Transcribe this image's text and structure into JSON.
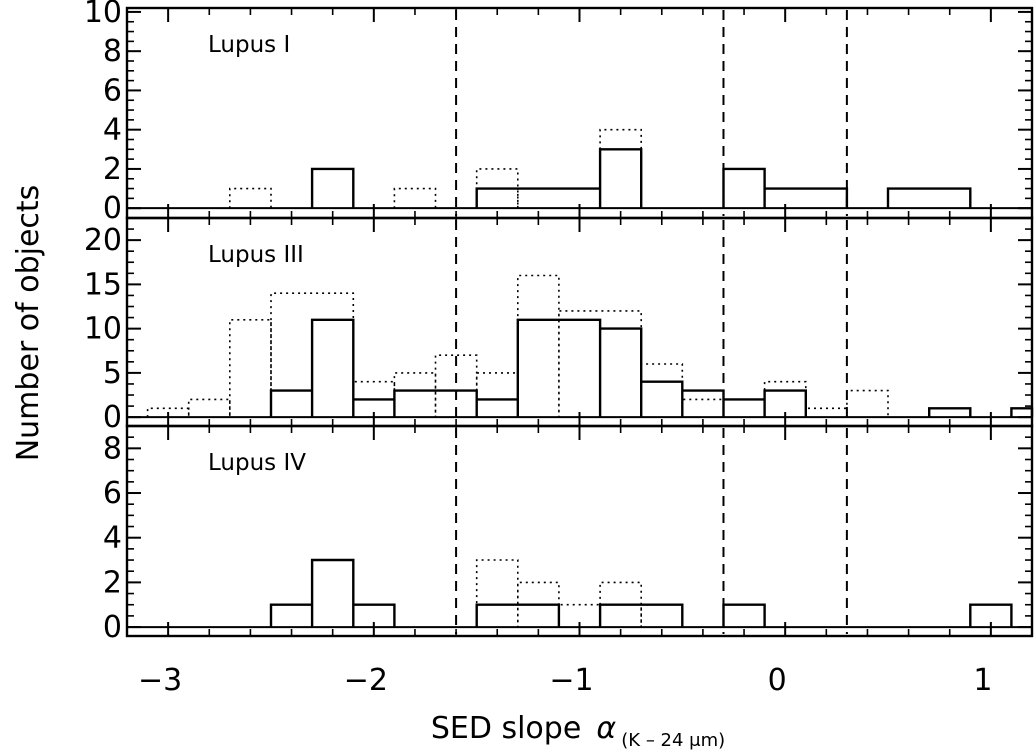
{
  "chart_data": {
    "type": "histogram",
    "x_axis": {
      "label": "SED slope",
      "symbol": "α",
      "subscript": "(K – 24 μm)",
      "range": [
        -3.2,
        1.2
      ],
      "ticks": [
        -3,
        -2,
        -1,
        0,
        1
      ],
      "tick_labels": [
        "−3",
        "−2",
        "−1",
        "0",
        "1"
      ],
      "bin_width": 0.2
    },
    "y_axis": {
      "label": "Number of objects"
    },
    "class_boundaries": [
      -1.6,
      -0.3,
      0.3
    ],
    "bins": {
      "lupus1": {
        "solid": [
          [
            -2.3,
            -2.1,
            2
          ],
          [
            -1.5,
            -0.9,
            1
          ],
          [
            -0.9,
            -0.7,
            3
          ],
          [
            -0.3,
            -0.1,
            2
          ],
          [
            -0.1,
            0.3,
            1
          ],
          [
            0.5,
            0.9,
            1
          ]
        ],
        "dotted": [
          [
            -2.7,
            -2.5,
            1
          ],
          [
            -2.3,
            -2.1,
            2
          ],
          [
            -1.9,
            -1.7,
            1
          ],
          [
            -1.5,
            -1.3,
            2
          ],
          [
            -1.3,
            -0.9,
            1
          ],
          [
            -0.9,
            -0.7,
            4
          ],
          [
            -0.3,
            -0.1,
            2
          ],
          [
            -0.1,
            0.3,
            1
          ],
          [
            0.5,
            0.9,
            1
          ]
        ]
      },
      "lupus3": {
        "solid": [
          [
            -2.5,
            -2.3,
            3
          ],
          [
            -2.3,
            -2.1,
            11
          ],
          [
            -2.1,
            -1.9,
            2
          ],
          [
            -1.9,
            -1.5,
            3
          ],
          [
            -1.5,
            -1.3,
            2
          ],
          [
            -1.3,
            -0.9,
            11
          ],
          [
            -0.9,
            -0.7,
            10
          ],
          [
            -0.7,
            -0.5,
            4
          ],
          [
            -0.5,
            -0.3,
            3
          ],
          [
            -0.3,
            -0.1,
            2
          ],
          [
            -0.1,
            0.1,
            3
          ],
          [
            0.7,
            0.9,
            1
          ],
          [
            1.1,
            1.3,
            1
          ]
        ],
        "dotted": [
          [
            -3.1,
            -2.9,
            1
          ],
          [
            -2.9,
            -2.7,
            2
          ],
          [
            -2.7,
            -2.5,
            11
          ],
          [
            -2.5,
            -2.1,
            14
          ],
          [
            -2.1,
            -1.9,
            4
          ],
          [
            -1.9,
            -1.7,
            5
          ],
          [
            -1.7,
            -1.5,
            7
          ],
          [
            -1.5,
            -1.3,
            5
          ],
          [
            -1.3,
            -1.1,
            16
          ],
          [
            -1.1,
            -0.7,
            12
          ],
          [
            -0.7,
            -0.5,
            6
          ],
          [
            -0.5,
            -0.1,
            2
          ],
          [
            -0.1,
            0.1,
            4
          ],
          [
            0.1,
            0.3,
            1
          ],
          [
            0.3,
            0.5,
            3
          ],
          [
            0.7,
            0.9,
            1
          ],
          [
            1.1,
            1.3,
            1
          ]
        ]
      },
      "lupus4": {
        "solid": [
          [
            -2.5,
            -2.3,
            1
          ],
          [
            -2.3,
            -2.1,
            3
          ],
          [
            -2.1,
            -1.9,
            1
          ],
          [
            -1.5,
            -1.1,
            1
          ],
          [
            -0.9,
            -0.5,
            1
          ],
          [
            -0.3,
            -0.1,
            1
          ],
          [
            0.9,
            1.1,
            1
          ]
        ],
        "dotted": [
          [
            -2.5,
            -2.3,
            1
          ],
          [
            -2.3,
            -2.1,
            3
          ],
          [
            -2.1,
            -1.9,
            1
          ],
          [
            -1.5,
            -1.3,
            3
          ],
          [
            -1.3,
            -1.1,
            2
          ],
          [
            -1.1,
            -0.9,
            1
          ],
          [
            -0.9,
            -0.7,
            2
          ],
          [
            -0.7,
            -0.5,
            1
          ],
          [
            -0.3,
            -0.1,
            1
          ],
          [
            0.9,
            1.1,
            1
          ]
        ]
      }
    },
    "panels": [
      {
        "key": "lupus1",
        "name": "Lupus I",
        "ylim": [
          -0.5,
          10.2
        ],
        "ticks": [
          0,
          2,
          4,
          6,
          8,
          10
        ],
        "tick_labels": [
          "0",
          "2",
          "4",
          "6",
          "8",
          "10"
        ]
      },
      {
        "key": "lupus3",
        "name": "Lupus III",
        "ylim": [
          -1,
          22.5
        ],
        "ticks": [
          0,
          5,
          10,
          15,
          20
        ],
        "tick_labels": [
          "0",
          "5",
          "10",
          "15",
          "20"
        ]
      },
      {
        "key": "lupus4",
        "name": "Lupus IV",
        "ylim": [
          -0.4,
          9.0
        ],
        "ticks": [
          0,
          2,
          4,
          6,
          8
        ],
        "tick_labels": [
          "0",
          "2",
          "4",
          "6",
          "8"
        ]
      }
    ]
  }
}
